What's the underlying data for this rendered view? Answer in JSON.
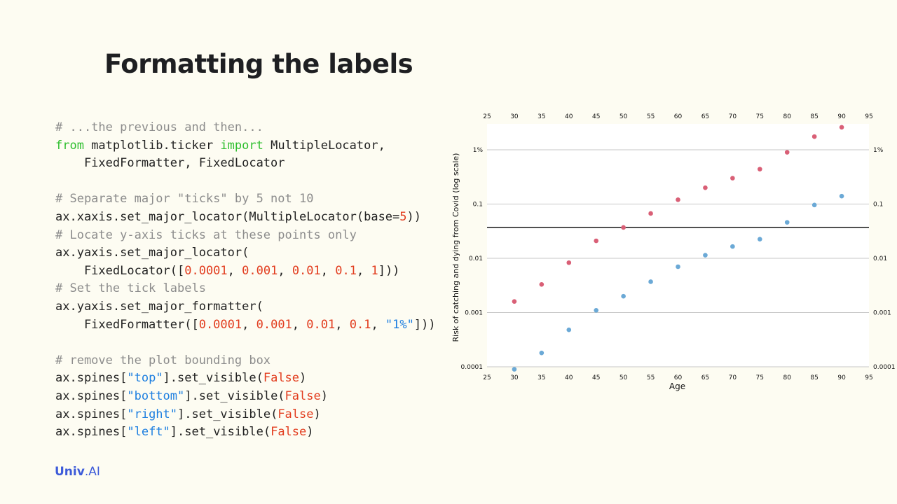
{
  "slide": {
    "title": "Formatting the labels",
    "logo": {
      "part1": "Univ",
      "part2": ".AI"
    }
  },
  "code_lines": [
    [
      {
        "t": "# ...the previous and then...",
        "k": "comment"
      }
    ],
    [
      {
        "t": "from",
        "k": "keyword"
      },
      {
        "t": " matplotlib.ticker ",
        "k": "plain"
      },
      {
        "t": "import",
        "k": "keyword"
      },
      {
        "t": " MultipleLocator,",
        "k": "plain"
      }
    ],
    [
      {
        "t": "    FixedFormatter, FixedLocator",
        "k": "plain"
      }
    ],
    [],
    [
      {
        "t": "# Separate major \"ticks\" by 5 not 10",
        "k": "comment"
      }
    ],
    [
      {
        "t": "ax.xaxis.set_major_locator(MultipleLocator(base=",
        "k": "plain"
      },
      {
        "t": "5",
        "k": "number"
      },
      {
        "t": "))",
        "k": "plain"
      }
    ],
    [
      {
        "t": "# Locate y-axis ticks at these points only",
        "k": "comment"
      }
    ],
    [
      {
        "t": "ax.yaxis.set_major_locator(",
        "k": "plain"
      }
    ],
    [
      {
        "t": "    FixedLocator([",
        "k": "plain"
      },
      {
        "t": "0.0001",
        "k": "number"
      },
      {
        "t": ", ",
        "k": "plain"
      },
      {
        "t": "0.001",
        "k": "number"
      },
      {
        "t": ", ",
        "k": "plain"
      },
      {
        "t": "0.01",
        "k": "number"
      },
      {
        "t": ", ",
        "k": "plain"
      },
      {
        "t": "0.1",
        "k": "number"
      },
      {
        "t": ", ",
        "k": "plain"
      },
      {
        "t": "1",
        "k": "number"
      },
      {
        "t": "]))",
        "k": "plain"
      }
    ],
    [
      {
        "t": "# Set the tick labels",
        "k": "comment"
      }
    ],
    [
      {
        "t": "ax.yaxis.set_major_formatter(",
        "k": "plain"
      }
    ],
    [
      {
        "t": "    FixedFormatter([",
        "k": "plain"
      },
      {
        "t": "0.0001",
        "k": "number"
      },
      {
        "t": ", ",
        "k": "plain"
      },
      {
        "t": "0.001",
        "k": "number"
      },
      {
        "t": ", ",
        "k": "plain"
      },
      {
        "t": "0.01",
        "k": "number"
      },
      {
        "t": ", ",
        "k": "plain"
      },
      {
        "t": "0.1",
        "k": "number"
      },
      {
        "t": ", ",
        "k": "plain"
      },
      {
        "t": "\"1%\"",
        "k": "string"
      },
      {
        "t": "]))",
        "k": "plain"
      }
    ],
    [],
    [
      {
        "t": "# remove the plot bounding box",
        "k": "comment"
      }
    ],
    [
      {
        "t": "ax.spines[",
        "k": "plain"
      },
      {
        "t": "\"top\"",
        "k": "string"
      },
      {
        "t": "].set_visible(",
        "k": "plain"
      },
      {
        "t": "False",
        "k": "false"
      },
      {
        "t": ")",
        "k": "plain"
      }
    ],
    [
      {
        "t": "ax.spines[",
        "k": "plain"
      },
      {
        "t": "\"bottom\"",
        "k": "string"
      },
      {
        "t": "].set_visible(",
        "k": "plain"
      },
      {
        "t": "False",
        "k": "false"
      },
      {
        "t": ")",
        "k": "plain"
      }
    ],
    [
      {
        "t": "ax.spines[",
        "k": "plain"
      },
      {
        "t": "\"right\"",
        "k": "string"
      },
      {
        "t": "].set_visible(",
        "k": "plain"
      },
      {
        "t": "False",
        "k": "false"
      },
      {
        "t": ")",
        "k": "plain"
      }
    ],
    [
      {
        "t": "ax.spines[",
        "k": "plain"
      },
      {
        "t": "\"left\"",
        "k": "string"
      },
      {
        "t": "].set_visible(",
        "k": "plain"
      },
      {
        "t": "False",
        "k": "false"
      },
      {
        "t": ")",
        "k": "plain"
      }
    ]
  ],
  "colors": {
    "background": "#fdfcf2",
    "comment": "#8c8c8c",
    "keyword": "#2fbf2f",
    "number": "#e23c1e",
    "string": "#1e7fe0",
    "logo": "#3d5bd9"
  },
  "chart_data": {
    "type": "scatter",
    "xlabel": "Age",
    "ylabel": "Risk of catching and dying from Covid (log scale)",
    "xlim": [
      25,
      95
    ],
    "ylim": [
      0.0001,
      3.0
    ],
    "yscale": "log",
    "x_ticks": [
      25,
      30,
      35,
      40,
      45,
      50,
      55,
      60,
      65,
      70,
      75,
      80,
      85,
      90,
      95
    ],
    "y_ticks": [
      0.0001,
      0.001,
      0.01,
      0.1,
      1
    ],
    "y_tick_labels": [
      "0.0001",
      "0.001",
      "0.01",
      "0.1",
      "1%"
    ],
    "ticks_on": [
      "top",
      "bottom",
      "left",
      "right"
    ],
    "grid": "horizontal",
    "spines_visible": false,
    "reference_line_y": 0.037,
    "reference_line_color": "#000000",
    "series": [
      {
        "color": "#d95f76",
        "x": [
          30,
          35,
          40,
          45,
          50,
          55,
          60,
          65,
          70,
          75,
          80,
          85,
          90
        ],
        "values": [
          0.0016,
          0.0033,
          0.0083,
          0.021,
          0.037,
          0.067,
          0.12,
          0.2,
          0.3,
          0.44,
          0.9,
          1.75,
          2.6
        ]
      },
      {
        "color": "#6ba9d6",
        "x": [
          30,
          35,
          40,
          45,
          50,
          55,
          60,
          65,
          70,
          75,
          80,
          85,
          90
        ],
        "values": [
          9e-05,
          0.00018,
          0.00048,
          0.0011,
          0.002,
          0.0037,
          0.007,
          0.0114,
          0.0165,
          0.0225,
          0.046,
          0.096,
          0.14
        ]
      }
    ]
  }
}
